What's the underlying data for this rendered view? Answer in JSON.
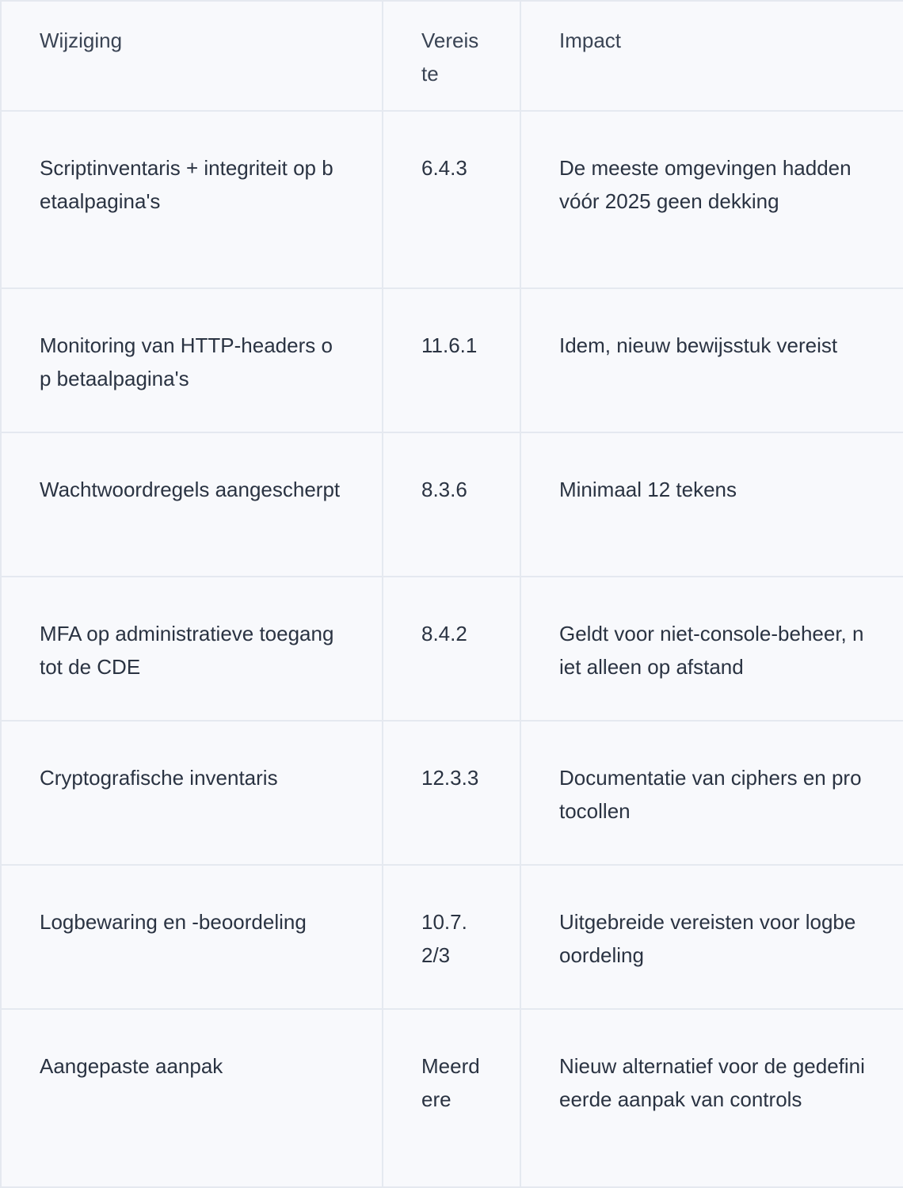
{
  "table": {
    "headers": [
      "Wijziging",
      "Vereiste",
      "Impact"
    ],
    "rows": [
      {
        "change": "Scriptinventaris + integriteit op betaalpagina's",
        "requirement": "6.4.3",
        "impact": "De meeste omgevingen hadden vóór 2025 geen dekking"
      },
      {
        "change": "Monitoring van HTTP-headers op betaalpagina's",
        "requirement": "11.6.1",
        "impact": "Idem, nieuw bewijsstuk vereist"
      },
      {
        "change": "Wachtwoordregels aangescherpt",
        "requirement": "8.3.6",
        "impact": "Minimaal 12 tekens"
      },
      {
        "change": "MFA op administratieve toegang tot de CDE",
        "requirement": "8.4.2",
        "impact": "Geldt voor niet-console-beheer, niet alleen op afstand"
      },
      {
        "change": "Cryptografische inventaris",
        "requirement": "12.3.3",
        "impact": "Documentatie van ciphers en protocollen"
      },
      {
        "change": "Logbewaring en -beoordeling",
        "requirement": "10.7.2/3",
        "impact": "Uitgebreide vereisten voor logbeoordeling"
      },
      {
        "change": "Aangepaste aanpak",
        "requirement": "Meerdere",
        "impact": "Nieuw alternatief voor de gedefinieerde aanpak van controls"
      }
    ]
  }
}
